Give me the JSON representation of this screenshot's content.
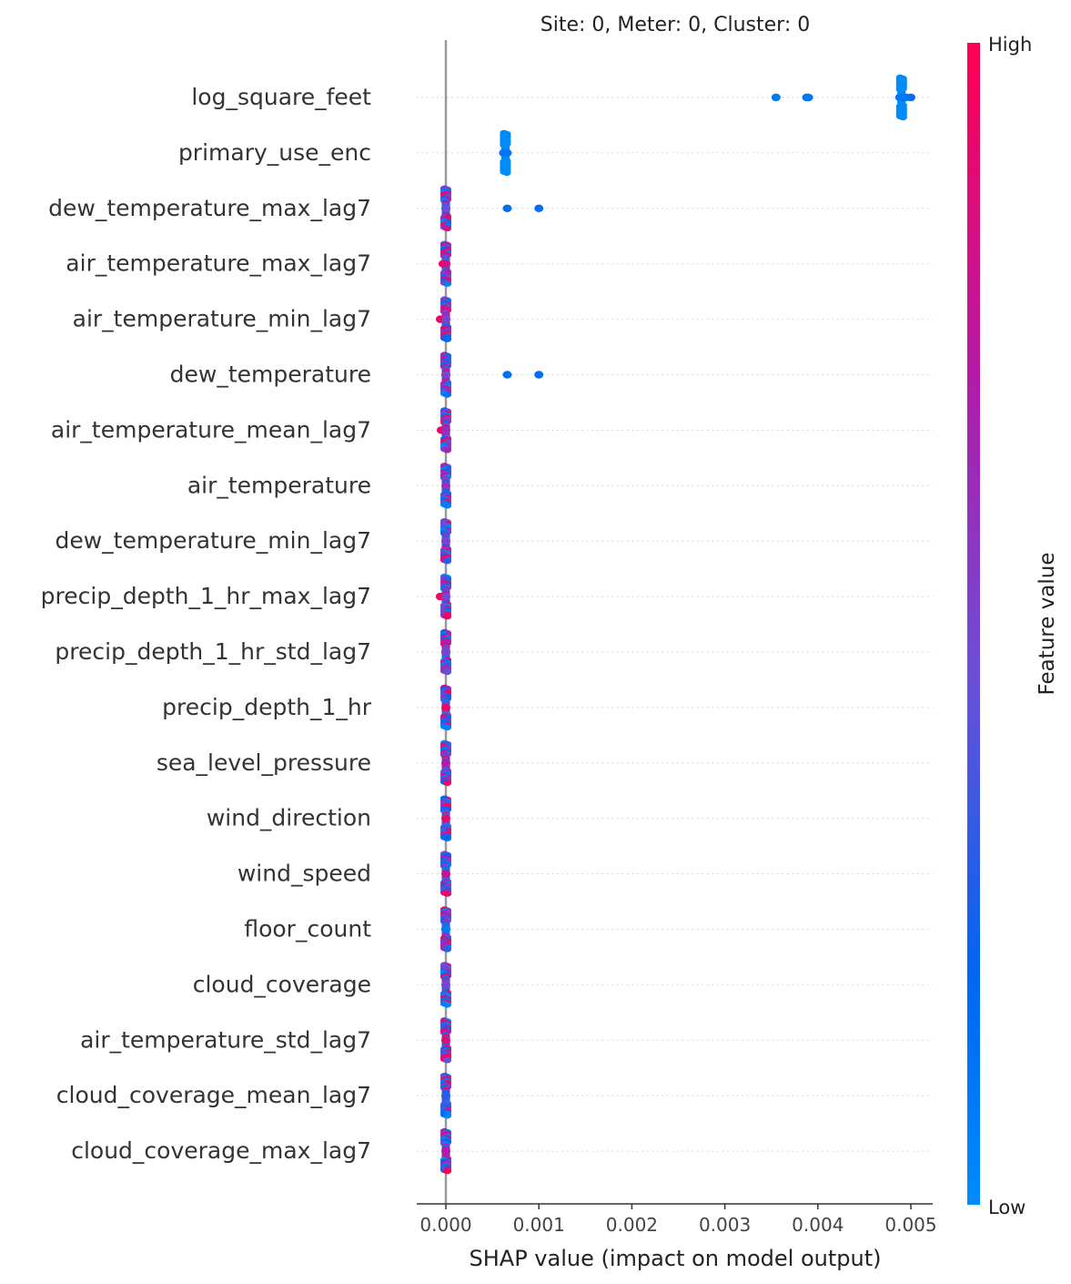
{
  "chart_data": {
    "type": "scatter",
    "title": "Site: 0, Meter: 0, Cluster: 0",
    "xlabel": "SHAP value (impact on model output)",
    "xlim": [
      -0.0003,
      0.00525
    ],
    "xticks": [
      0.0,
      0.001,
      0.002,
      0.003,
      0.004,
      0.005
    ],
    "xtick_labels": [
      "0.000",
      "0.001",
      "0.002",
      "0.003",
      "0.004",
      "0.005"
    ],
    "grid": "dotted horizontal per feature",
    "colorbar": {
      "label": "Feature value",
      "high_label": "High",
      "low_label": "Low",
      "high_color": "#ff0052",
      "low_color": "#008bfb"
    },
    "features": [
      {
        "name": "log_square_feet",
        "points": [
          [
            0.00355,
            0.1
          ],
          [
            0.00388,
            0.15
          ],
          [
            0.0039,
            0.1
          ],
          [
            0.00488,
            0.1
          ],
          [
            0.00492,
            0.12
          ],
          [
            0.00495,
            0.1
          ],
          [
            0.005,
            0.15
          ]
        ],
        "spread_at": 0.0049
      },
      {
        "name": "primary_use_enc",
        "points": [
          [
            0.00062,
            0.1
          ],
          [
            0.00064,
            0.12
          ],
          [
            0.00066,
            0.1
          ]
        ],
        "spread_at": 0.00064
      },
      {
        "name": "dew_temperature_max_lag7",
        "points": [
          [
            0.00066,
            0.15
          ],
          [
            0.001,
            0.15
          ],
          [
            0.0,
            0.75
          ],
          [
            0.0,
            0.6
          ],
          [
            0.0,
            0.45
          ]
        ],
        "spread_at": 0.0
      },
      {
        "name": "air_temperature_max_lag7",
        "points": [
          [
            -3e-05,
            0.95
          ],
          [
            0.0,
            0.3
          ],
          [
            0.0,
            0.85
          ]
        ],
        "spread_at": 0.0
      },
      {
        "name": "air_temperature_min_lag7",
        "points": [
          [
            -6e-05,
            0.95
          ],
          [
            0.0,
            0.3
          ],
          [
            0.0,
            0.5
          ]
        ],
        "spread_at": 0.0
      },
      {
        "name": "dew_temperature",
        "points": [
          [
            0.00066,
            0.15
          ],
          [
            0.001,
            0.15
          ],
          [
            0.0,
            0.7
          ],
          [
            0.0,
            0.5
          ]
        ],
        "spread_at": 0.0
      },
      {
        "name": "air_temperature_mean_lag7",
        "points": [
          [
            -5e-05,
            0.95
          ],
          [
            0.0,
            0.4
          ],
          [
            0.0,
            0.6
          ]
        ],
        "spread_at": 0.0
      },
      {
        "name": "air_temperature",
        "points": [
          [
            0.0,
            0.4
          ],
          [
            0.0,
            0.6
          ]
        ],
        "spread_at": 0.0
      },
      {
        "name": "dew_temperature_min_lag7",
        "points": [
          [
            0.0,
            0.7
          ],
          [
            0.0,
            0.5
          ]
        ],
        "spread_at": 0.0
      },
      {
        "name": "precip_depth_1_hr_max_lag7",
        "points": [
          [
            -6e-05,
            0.95
          ],
          [
            0.0,
            0.2
          ],
          [
            0.0,
            0.5
          ]
        ],
        "spread_at": 0.0
      },
      {
        "name": "precip_depth_1_hr_std_lag7",
        "points": [
          [
            0.0,
            0.15
          ],
          [
            0.0,
            0.5
          ]
        ],
        "spread_at": 0.0
      },
      {
        "name": "precip_depth_1_hr",
        "points": [
          [
            0.0,
            0.15
          ],
          [
            0.0,
            0.95
          ]
        ],
        "spread_at": 0.0
      },
      {
        "name": "sea_level_pressure",
        "points": [
          [
            0.0,
            0.5
          ],
          [
            0.0,
            0.7
          ]
        ],
        "spread_at": 0.0
      },
      {
        "name": "wind_direction",
        "points": [
          [
            0.0,
            0.5
          ],
          [
            0.0,
            0.9
          ]
        ],
        "spread_at": 0.0
      },
      {
        "name": "wind_speed",
        "points": [
          [
            0.0,
            0.6
          ],
          [
            0.0,
            0.8
          ]
        ],
        "spread_at": 0.0
      },
      {
        "name": "floor_count",
        "points": [
          [
            0.0,
            0.05
          ],
          [
            0.0,
            0.1
          ]
        ],
        "spread_at": 0.0
      },
      {
        "name": "cloud_coverage",
        "points": [
          [
            0.0,
            0.2
          ],
          [
            0.0,
            0.5
          ]
        ],
        "spread_at": 0.0
      },
      {
        "name": "air_temperature_std_lag7",
        "points": [
          [
            0.0,
            0.5
          ],
          [
            0.0,
            0.85
          ]
        ],
        "spread_at": 0.0
      },
      {
        "name": "cloud_coverage_mean_lag7",
        "points": [
          [
            0.0,
            0.15
          ],
          [
            0.0,
            0.3
          ]
        ],
        "spread_at": 0.0
      },
      {
        "name": "cloud_coverage_max_lag7",
        "points": [
          [
            0.0,
            0.4
          ],
          [
            0.0,
            0.7
          ]
        ],
        "spread_at": 0.0
      }
    ]
  }
}
